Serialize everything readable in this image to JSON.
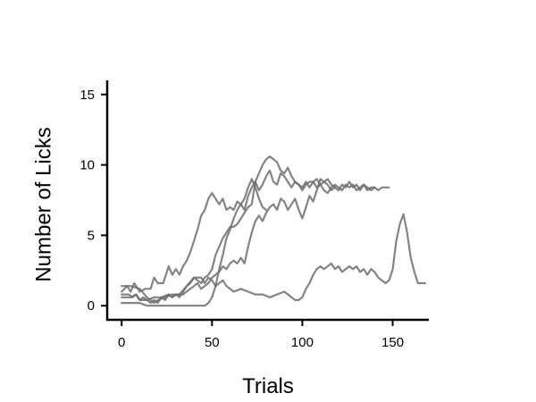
{
  "chart_data": {
    "type": "line",
    "xlabel": "Trials",
    "ylabel": "Number of Licks",
    "xlim": [
      -8,
      170
    ],
    "ylim": [
      -1,
      16
    ],
    "xticks": [
      0,
      50,
      100,
      150
    ],
    "yticks": [
      0,
      5,
      10,
      15
    ],
    "grid": false,
    "line_color": "#6e6e6e",
    "line_opacity": 0.85,
    "series": [
      {
        "x": [
          0,
          3,
          5,
          7,
          10,
          13,
          16,
          18,
          20,
          23,
          26,
          28,
          30,
          32,
          34,
          36,
          38,
          40,
          42,
          44,
          46,
          48,
          50,
          52,
          54,
          56,
          58,
          60,
          62,
          64,
          66,
          68,
          70,
          72,
          74,
          76,
          78,
          80,
          82,
          84,
          86,
          88,
          90,
          92,
          94,
          96,
          98,
          100,
          102,
          104,
          106,
          108,
          110,
          112,
          114,
          116,
          118,
          120,
          122,
          124,
          126,
          128,
          130,
          132,
          134,
          136,
          138,
          140,
          142,
          144,
          146,
          148
        ],
        "values": [
          1.0,
          1.4,
          1.0,
          1.6,
          1.0,
          1.2,
          1.2,
          2.0,
          1.6,
          1.6,
          2.8,
          2.2,
          2.6,
          2.2,
          2.8,
          3.2,
          3.8,
          4.6,
          5.4,
          6.4,
          6.8,
          7.6,
          8.0,
          7.6,
          7.2,
          7.6,
          6.8,
          7.0,
          6.8,
          7.4,
          7.2,
          6.8,
          7.8,
          8.4,
          8.8,
          8.2,
          8.6,
          9.2,
          9.6,
          8.8,
          8.6,
          9.4,
          9.2,
          8.8,
          8.4,
          8.8,
          8.6,
          8.2,
          8.6,
          8.8,
          8.8,
          8.4,
          8.6,
          8.8,
          8.6,
          8.2,
          8.4,
          8.2,
          8.6,
          8.4,
          8.8,
          8.4,
          8.6,
          8.2,
          8.6,
          8.2,
          8.4,
          8.4,
          8.2,
          8.4,
          8.4,
          8.4
        ]
      },
      {
        "x": [
          0,
          4,
          6,
          8,
          10,
          12,
          14,
          16,
          18,
          20,
          22,
          24,
          26,
          28,
          30,
          32,
          34,
          36,
          38,
          40,
          42,
          44,
          46,
          48,
          50,
          52,
          54,
          56,
          58,
          60,
          62,
          64,
          66,
          68,
          70,
          72,
          74,
          76,
          78,
          80,
          82,
          84,
          86,
          88,
          90,
          92,
          94,
          96,
          98,
          100,
          102,
          104,
          106,
          108,
          110,
          112,
          114,
          116,
          118,
          120,
          122,
          124,
          126,
          128,
          130,
          132,
          134,
          136,
          138,
          140
        ],
        "values": [
          0.8,
          0.8,
          0.6,
          0.8,
          0.4,
          0.6,
          0.4,
          0.2,
          0.4,
          0.2,
          0.6,
          0.4,
          0.8,
          0.6,
          0.8,
          0.6,
          1.0,
          1.4,
          1.6,
          2.0,
          1.8,
          1.6,
          2.0,
          2.2,
          2.6,
          3.6,
          4.2,
          4.8,
          5.2,
          5.6,
          5.6,
          5.8,
          6.2,
          6.6,
          7.0,
          7.2,
          8.8,
          9.4,
          10.0,
          10.4,
          10.6,
          10.4,
          10.2,
          9.6,
          9.4,
          9.8,
          9.2,
          8.8,
          8.6,
          8.4,
          8.8,
          8.4,
          8.8,
          9.0,
          8.6,
          8.2,
          8.0,
          8.4,
          8.6,
          8.4,
          8.2,
          8.6,
          8.4,
          8.6,
          8.2,
          8.4,
          8.6,
          8.4,
          8.2,
          8.4
        ]
      },
      {
        "x": [
          0,
          5,
          8,
          10,
          14,
          18,
          22,
          26,
          28,
          30,
          34,
          38,
          40,
          42,
          44,
          46,
          48,
          50,
          52,
          54,
          56,
          58,
          60,
          62,
          64,
          66,
          68,
          70,
          72,
          74,
          76,
          78,
          80,
          82,
          84,
          86,
          88,
          90,
          92,
          94,
          96,
          98,
          100,
          102,
          104,
          106,
          108,
          110,
          112,
          114,
          116,
          118
        ],
        "values": [
          0.6,
          0.6,
          0.8,
          0.4,
          0.4,
          0.6,
          0.6,
          0.8,
          0.6,
          0.8,
          0.8,
          1.2,
          1.4,
          1.6,
          1.2,
          1.4,
          1.6,
          2.0,
          2.2,
          2.4,
          2.8,
          2.6,
          3.0,
          3.2,
          3.0,
          3.4,
          3.0,
          4.2,
          5.2,
          6.0,
          6.4,
          6.0,
          6.6,
          7.0,
          7.2,
          6.8,
          7.6,
          7.4,
          6.8,
          7.2,
          7.6,
          6.8,
          6.2,
          7.0,
          7.8,
          7.4,
          8.2,
          9.0,
          8.8,
          9.0,
          8.6,
          8.4
        ]
      },
      {
        "x": [
          0,
          5,
          10,
          14,
          16,
          18,
          20,
          24,
          28,
          32,
          36,
          40,
          44,
          46,
          48,
          50,
          52,
          54,
          56,
          58,
          60,
          62,
          66,
          70,
          74,
          78,
          82,
          86,
          90,
          94,
          96,
          98,
          100,
          102,
          104,
          106,
          108,
          110,
          112,
          114,
          116,
          118,
          120,
          122,
          124,
          126,
          128,
          130,
          132,
          134,
          136,
          138,
          140,
          142,
          144,
          146,
          148,
          150,
          152,
          154,
          156,
          158,
          160,
          162,
          164,
          166,
          168
        ],
        "values": [
          1.4,
          1.4,
          1.2,
          0.6,
          0.4,
          0.2,
          0.4,
          0.6,
          0.8,
          0.8,
          1.4,
          2.0,
          2.0,
          1.6,
          2.0,
          1.8,
          1.4,
          1.6,
          1.8,
          1.4,
          1.2,
          1.0,
          1.2,
          1.0,
          0.8,
          0.8,
          0.6,
          0.8,
          1.0,
          0.6,
          0.4,
          0.4,
          0.6,
          1.2,
          1.6,
          2.2,
          2.6,
          2.8,
          2.6,
          2.8,
          3.0,
          2.6,
          2.8,
          2.4,
          2.6,
          2.8,
          2.6,
          2.8,
          2.4,
          2.6,
          2.2,
          2.6,
          2.4,
          2.0,
          1.8,
          1.6,
          1.8,
          2.6,
          4.6,
          5.8,
          6.5,
          5.2,
          3.4,
          2.4,
          1.6,
          1.6,
          1.6
        ]
      },
      {
        "x": [
          0,
          5,
          10,
          14,
          18,
          22,
          26,
          30,
          34,
          38,
          40,
          42,
          44,
          46,
          48,
          50,
          52,
          54,
          56,
          58,
          60,
          62,
          64,
          66,
          68,
          70,
          72,
          74,
          76,
          78,
          80
        ],
        "values": [
          0.2,
          0.2,
          0.2,
          0.0,
          0.0,
          0.0,
          0.0,
          0.0,
          0.0,
          0.0,
          0.0,
          0.0,
          0.0,
          0.0,
          0.2,
          0.6,
          1.4,
          2.6,
          3.6,
          4.8,
          5.4,
          6.2,
          6.8,
          7.2,
          7.6,
          8.4,
          9.0,
          8.4,
          7.6,
          7.0,
          6.8
        ]
      }
    ]
  }
}
